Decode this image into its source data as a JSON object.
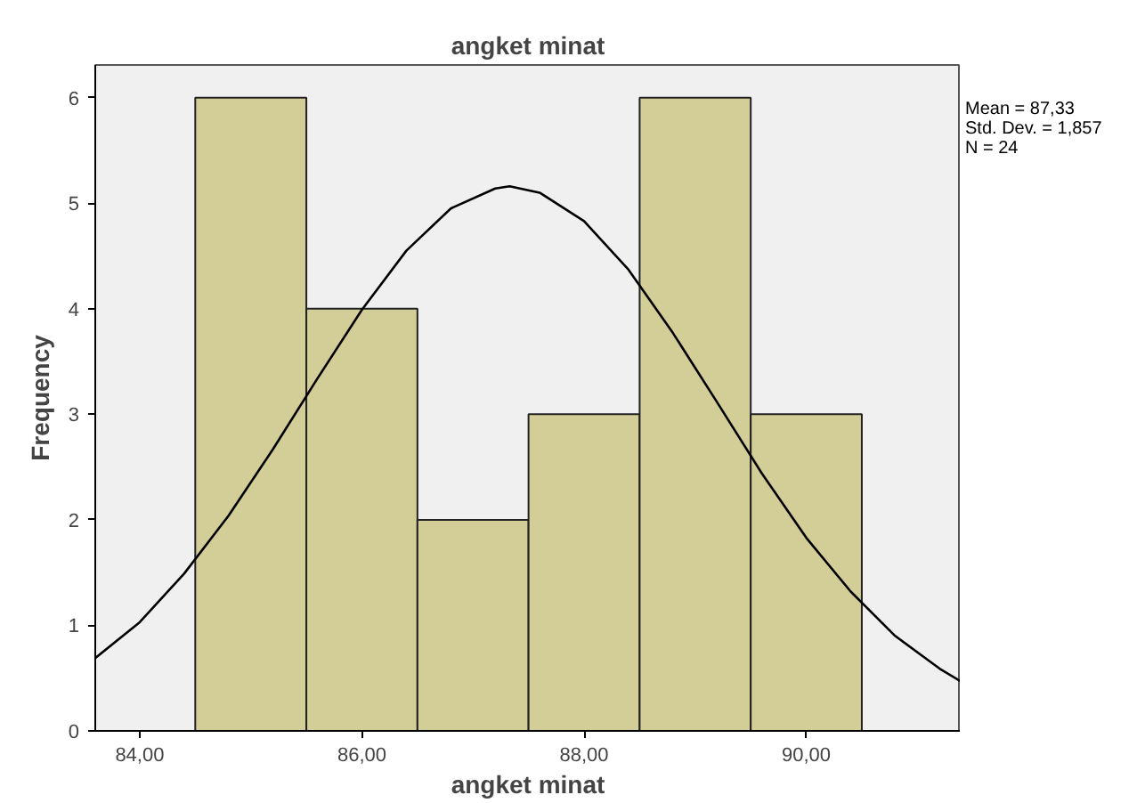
{
  "chart_data": {
    "type": "histogram",
    "title": "angket minat",
    "xlabel": "angket minat",
    "ylabel": "Frequency",
    "bins": [
      84.5,
      85.5,
      86.5,
      87.5,
      88.5,
      89.5,
      90.5
    ],
    "values": [
      6,
      4,
      2,
      3,
      6,
      3
    ],
    "color": "#d3ce97",
    "series": [
      {
        "type": "line",
        "color": "#000000",
        "x": [
          83.6,
          84.0,
          84.4,
          84.8,
          85.2,
          85.6,
          86.0,
          86.4,
          86.8,
          87.2,
          87.33,
          87.6,
          88.0,
          88.4,
          88.8,
          89.2,
          89.6,
          90.0,
          90.4,
          90.8,
          91.2,
          91.39
        ],
        "values": [
          0.69,
          1.03,
          1.49,
          2.04,
          2.67,
          3.34,
          3.99,
          4.55,
          4.95,
          5.14,
          5.16,
          5.1,
          4.83,
          4.37,
          3.77,
          3.11,
          2.44,
          1.83,
          1.32,
          0.9,
          0.59,
          0.47
        ]
      }
    ],
    "xlim": [
      83.6,
      91.39
    ],
    "ylim": [
      0,
      6.31
    ],
    "xticks": [
      {
        "value": 84,
        "label": "84,00"
      },
      {
        "value": 86,
        "label": "86,00"
      },
      {
        "value": 88,
        "label": "88,00"
      },
      {
        "value": 90,
        "label": "90,00"
      }
    ],
    "yticks": [
      0,
      1,
      2,
      3,
      4,
      5,
      6
    ],
    "grid": false,
    "annotations": [
      "Mean = 87,33",
      "Std. Dev. = 1,857",
      "N = 24"
    ]
  }
}
